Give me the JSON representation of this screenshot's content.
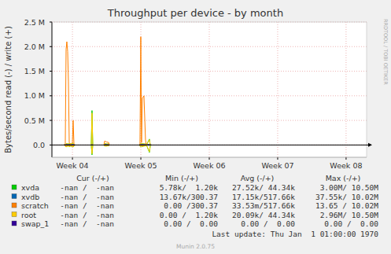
{
  "chart_data": {
    "type": "line",
    "title": "Throughput per device - by month",
    "y_label": "Bytes/second read (-) / write (+)",
    "watermark": "RRDTOOL / TOBI OETIKER",
    "footer": "Munin 2.0.75",
    "last_update": "Last update: Thu Jan  1 01:00:00 1970",
    "legend": "bottom",
    "legend_columns": [
      "Cur (-/+)",
      "Min (-/+)",
      "Avg (-/+)",
      "Max (-/+)"
    ],
    "grid": true,
    "xlim": [
      3.7,
      8.3
    ],
    "xticks": [
      {
        "value": 4,
        "label": "Week 04"
      },
      {
        "value": 5,
        "label": "Week 05"
      },
      {
        "value": 6,
        "label": "Week 06"
      },
      {
        "value": 7,
        "label": "Week 07"
      },
      {
        "value": 8,
        "label": "Week 08"
      }
    ],
    "ylim": [
      -250000,
      2500000
    ],
    "yticks": [
      {
        "value": 0,
        "label": "0.0"
      },
      {
        "value": 500000,
        "label": "0.5 M"
      },
      {
        "value": 1000000,
        "label": "1.0 M"
      },
      {
        "value": 1500000,
        "label": "1.5 M"
      },
      {
        "value": 2000000,
        "label": "2.0 M"
      },
      {
        "value": 2500000,
        "label": "2.5 M"
      }
    ],
    "x": [
      3.88,
      3.895,
      3.907,
      3.918,
      3.93,
      3.941,
      3.953,
      3.976,
      3.999,
      4.01,
      4.022,
      4.035,
      4.15,
      4.275,
      4.286,
      4.297,
      4.4,
      4.46,
      4.47,
      4.5,
      4.53,
      4.54,
      4.8,
      4.976,
      4.987,
      4.999,
      5.01,
      5.022,
      5.045,
      5.068,
      5.08,
      5.1,
      5.125,
      5.137,
      5.15
    ],
    "series": [
      {
        "name": "xvda",
        "color": "#00cc00",
        "cur": "-nan /  -nan",
        "min": "5.78k/  1.20k",
        "avg": "27.52k/ 44.34k",
        "max": "3.00M/ 10.50M",
        "values": [
          0,
          10000,
          20000,
          30000,
          20000,
          20000,
          30000,
          20000,
          30000,
          40000,
          20000,
          0,
          null,
          0,
          700000,
          0,
          null,
          0,
          30000,
          20000,
          20000,
          0,
          null,
          0,
          10000,
          30000,
          20000,
          30000,
          20000,
          20000,
          0,
          50000,
          120000,
          0,
          0
        ],
        "read": [
          0,
          -20000,
          -40000,
          -30000,
          -20000,
          -20000,
          -30000,
          -20000,
          -30000,
          -40000,
          -20000,
          0,
          null,
          0,
          -200000,
          0,
          null,
          0,
          -20000,
          -20000,
          -10000,
          0,
          null,
          0,
          -20000,
          -30000,
          -20000,
          -30000,
          -20000,
          -20000,
          0,
          -60000,
          -150000,
          -20000,
          0
        ]
      },
      {
        "name": "xvdb",
        "color": "#0066b3",
        "cur": "-nan /  -nan",
        "min": "13.67k/300.37",
        "avg": "17.15k/517.66k",
        "max": "37.55k/ 10.02M",
        "values": [
          0,
          10000,
          10000,
          10000,
          10000,
          10000,
          10000,
          10000,
          10000,
          10000,
          10000,
          0,
          null,
          0,
          10000,
          0,
          null,
          0,
          10000,
          10000,
          10000,
          0,
          null,
          0,
          10000,
          10000,
          10000,
          10000,
          10000,
          10000,
          0,
          10000,
          10000,
          0,
          0
        ],
        "read": [
          0,
          -5000,
          -5000,
          -5000,
          -5000,
          -5000,
          -5000,
          -5000,
          -5000,
          -5000,
          -5000,
          0,
          null,
          0,
          -5000,
          0,
          null,
          0,
          -5000,
          -5000,
          -5000,
          0,
          null,
          0,
          -5000,
          -5000,
          -5000,
          -5000,
          -5000,
          -5000,
          0,
          -5000,
          -5000,
          0,
          0
        ]
      },
      {
        "name": "scratch",
        "color": "#ff8000",
        "cur": "-nan /  -nan",
        "min": "0.00 /300.37",
        "avg": "33.53m/517.66k",
        "max": "13.65 / 10.02M",
        "values": [
          0,
          0,
          1950000,
          2100000,
          1900000,
          1300000,
          50000,
          0,
          50000,
          500000,
          20000,
          0,
          null,
          0,
          0,
          0,
          null,
          0,
          80000,
          60000,
          50000,
          0,
          null,
          0,
          0,
          2200000,
          50000,
          950000,
          1000000,
          100000,
          0,
          0,
          0,
          0,
          0
        ],
        "read": [
          0,
          -20000,
          -30000,
          -20000,
          -10000,
          -10000,
          -20000,
          -10000,
          -20000,
          -30000,
          -10000,
          0,
          null,
          0,
          0,
          0,
          null,
          0,
          -10000,
          -10000,
          -10000,
          0,
          null,
          0,
          -10000,
          -20000,
          -10000,
          -20000,
          -10000,
          -10000,
          0,
          0,
          0,
          0,
          0
        ]
      },
      {
        "name": "root",
        "color": "#ffcc00",
        "cur": "-nan /  -nan",
        "min": "0.00 /  1.20k",
        "avg": "20.09k/ 44.34k",
        "max": "2.96M/ 10.50M",
        "values": [
          0,
          10000,
          20000,
          30000,
          20000,
          20000,
          30000,
          20000,
          30000,
          40000,
          20000,
          0,
          null,
          0,
          650000,
          0,
          null,
          0,
          30000,
          20000,
          20000,
          0,
          null,
          0,
          10000,
          30000,
          20000,
          30000,
          20000,
          20000,
          0,
          50000,
          110000,
          0,
          0
        ],
        "read": [
          0,
          -20000,
          -40000,
          -30000,
          -20000,
          -20000,
          -30000,
          -20000,
          -30000,
          -40000,
          -20000,
          0,
          null,
          0,
          -180000,
          0,
          null,
          0,
          -20000,
          -20000,
          -10000,
          0,
          null,
          0,
          -20000,
          -30000,
          -20000,
          -30000,
          -20000,
          -20000,
          0,
          -60000,
          -140000,
          -20000,
          0
        ]
      },
      {
        "name": "swap_1",
        "color": "#330099",
        "cur": "-nan /  -nan",
        "min": "0.00 /  0.00",
        "avg": "0.00 /  0.00",
        "max": "0.00 /  0.00",
        "values": [
          0,
          0,
          0,
          0,
          0,
          0,
          0,
          0,
          0,
          0,
          0,
          0,
          null,
          0,
          0,
          0,
          null,
          0,
          0,
          0,
          0,
          0,
          null,
          0,
          0,
          0,
          0,
          0,
          0,
          0,
          0,
          0,
          0,
          0,
          0
        ],
        "read": [
          0,
          0,
          0,
          0,
          0,
          0,
          0,
          0,
          0,
          0,
          0,
          0,
          null,
          0,
          0,
          0,
          null,
          0,
          0,
          0,
          0,
          0,
          null,
          0,
          0,
          0,
          0,
          0,
          0,
          0,
          0,
          0,
          0,
          0,
          0
        ]
      }
    ]
  }
}
